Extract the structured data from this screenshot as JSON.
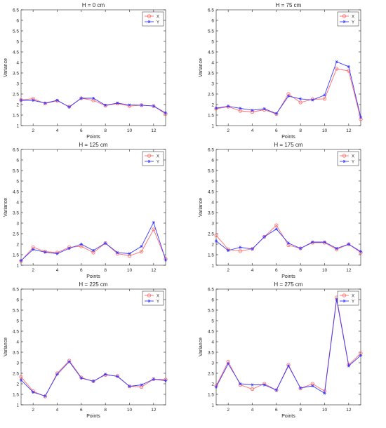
{
  "colors": {
    "x_series": "#ff6b6b",
    "y_series": "#3a3aff",
    "axis": "#262626",
    "background": "#ffffff"
  },
  "chart_data": [
    {
      "type": "line",
      "title": "H = 0 cm",
      "xlabel": "Points",
      "ylabel": "Variance",
      "x": [
        1,
        2,
        3,
        4,
        5,
        6,
        7,
        8,
        9,
        10,
        11,
        12,
        13
      ],
      "xlim": [
        1,
        13
      ],
      "ylim": [
        1,
        6.5
      ],
      "xticks": [
        2,
        4,
        6,
        8,
        10,
        12
      ],
      "yticks": [
        1,
        1.5,
        2,
        2.5,
        3,
        3.5,
        4,
        4.5,
        5,
        5.5,
        6,
        6.5
      ],
      "legend": "top-right",
      "grid": false,
      "series": [
        {
          "name": "X",
          "marker": "circle",
          "values": [
            2.22,
            2.28,
            2.05,
            2.18,
            1.9,
            2.3,
            2.2,
            1.95,
            2.05,
            1.93,
            1.97,
            1.93,
            1.55
          ]
        },
        {
          "name": "Y",
          "marker": "star",
          "values": [
            2.2,
            2.2,
            2.07,
            2.2,
            1.88,
            2.3,
            2.3,
            1.97,
            2.07,
            1.98,
            1.97,
            1.93,
            1.6
          ]
        }
      ]
    },
    {
      "type": "line",
      "title": "H = 75 cm",
      "xlabel": "Points",
      "ylabel": "Variance",
      "x": [
        1,
        2,
        3,
        4,
        5,
        6,
        7,
        8,
        9,
        10,
        11,
        12,
        13
      ],
      "xlim": [
        1,
        13
      ],
      "ylim": [
        1,
        6.5
      ],
      "xticks": [
        2,
        4,
        6,
        8,
        10,
        12
      ],
      "yticks": [
        1,
        1.5,
        2,
        2.5,
        3,
        3.5,
        4,
        4.5,
        5,
        5.5,
        6,
        6.5
      ],
      "legend": "top-right",
      "grid": false,
      "series": [
        {
          "name": "X",
          "marker": "circle",
          "values": [
            1.8,
            1.9,
            1.7,
            1.65,
            1.75,
            1.55,
            2.5,
            2.1,
            2.25,
            2.27,
            3.7,
            3.6,
            1.3
          ]
        },
        {
          "name": "Y",
          "marker": "star",
          "values": [
            1.83,
            1.92,
            1.82,
            1.73,
            1.8,
            1.57,
            2.4,
            2.27,
            2.22,
            2.45,
            4.03,
            3.8,
            1.4
          ]
        }
      ]
    },
    {
      "type": "line",
      "title": "H = 125 cm",
      "xlabel": "Points",
      "ylabel": "Variance",
      "x": [
        1,
        2,
        3,
        4,
        5,
        6,
        7,
        8,
        9,
        10,
        11,
        12,
        13
      ],
      "xlim": [
        1,
        13
      ],
      "ylim": [
        1,
        6.5
      ],
      "xticks": [
        2,
        4,
        6,
        8,
        10,
        12
      ],
      "yticks": [
        1,
        1.5,
        2,
        2.5,
        3,
        3.5,
        4,
        4.5,
        5,
        5.5,
        6,
        6.5
      ],
      "legend": "top-right",
      "grid": false,
      "series": [
        {
          "name": "X",
          "marker": "circle",
          "values": [
            1.2,
            1.85,
            1.65,
            1.6,
            1.85,
            1.9,
            1.6,
            2.05,
            1.55,
            1.45,
            1.65,
            2.7,
            1.3
          ]
        },
        {
          "name": "Y",
          "marker": "star",
          "values": [
            1.22,
            1.75,
            1.62,
            1.55,
            1.8,
            2.0,
            1.7,
            2.05,
            1.6,
            1.55,
            1.9,
            3.03,
            1.25
          ]
        }
      ]
    },
    {
      "type": "line",
      "title": "H = 175 cm",
      "xlabel": "Points",
      "ylabel": "Variance",
      "x": [
        1,
        2,
        3,
        4,
        5,
        6,
        7,
        8,
        9,
        10,
        11,
        12,
        13
      ],
      "xlim": [
        1,
        13
      ],
      "ylim": [
        1,
        6.5
      ],
      "xticks": [
        2,
        4,
        6,
        8,
        10,
        12
      ],
      "yticks": [
        1,
        1.5,
        2,
        2.5,
        3,
        3.5,
        4,
        4.5,
        5,
        5.5,
        6,
        6.5
      ],
      "legend": "top-right",
      "grid": false,
      "series": [
        {
          "name": "X",
          "marker": "circle",
          "values": [
            2.42,
            1.75,
            1.67,
            1.78,
            2.35,
            2.9,
            1.95,
            1.8,
            2.07,
            2.07,
            1.75,
            2.0,
            1.6
          ]
        },
        {
          "name": "Y",
          "marker": "star",
          "values": [
            2.15,
            1.7,
            1.85,
            1.77,
            2.35,
            2.72,
            2.05,
            1.8,
            2.1,
            2.1,
            1.8,
            2.0,
            1.65
          ]
        }
      ]
    },
    {
      "type": "line",
      "title": "H = 225 cm",
      "xlabel": "Points",
      "ylabel": "Variance",
      "x": [
        1,
        2,
        3,
        4,
        5,
        6,
        7,
        8,
        9,
        10,
        11,
        12,
        13
      ],
      "xlim": [
        1,
        13
      ],
      "ylim": [
        1,
        6.5
      ],
      "xticks": [
        2,
        4,
        6,
        8,
        10,
        12
      ],
      "yticks": [
        1,
        1.5,
        2,
        2.5,
        3,
        3.5,
        4,
        4.5,
        5,
        5.5,
        6,
        6.5
      ],
      "legend": "top-right",
      "grid": false,
      "series": [
        {
          "name": "X",
          "marker": "circle",
          "values": [
            2.33,
            1.65,
            1.4,
            2.5,
            3.1,
            2.3,
            2.12,
            2.42,
            2.37,
            1.88,
            1.85,
            2.22,
            2.2
          ]
        },
        {
          "name": "Y",
          "marker": "star",
          "values": [
            2.18,
            1.6,
            1.42,
            2.45,
            3.05,
            2.27,
            2.12,
            2.45,
            2.35,
            1.88,
            1.95,
            2.22,
            2.15
          ]
        }
      ]
    },
    {
      "type": "line",
      "title": "H = 275 cm",
      "xlabel": "Points",
      "ylabel": "Variance",
      "x": [
        1,
        2,
        3,
        4,
        5,
        6,
        7,
        8,
        9,
        10,
        11,
        12,
        13
      ],
      "xlim": [
        1,
        13
      ],
      "ylim": [
        1,
        6.5
      ],
      "xticks": [
        2,
        4,
        6,
        8,
        10,
        12
      ],
      "yticks": [
        1,
        1.5,
        2,
        2.5,
        3,
        3.5,
        4,
        4.5,
        5,
        5.5,
        6,
        6.5
      ],
      "legend": "top-right",
      "grid": false,
      "series": [
        {
          "name": "X",
          "marker": "circle",
          "values": [
            1.9,
            3.05,
            1.95,
            1.75,
            2.0,
            1.7,
            2.9,
            1.78,
            2.0,
            1.65,
            6.1,
            2.9,
            3.45
          ]
        },
        {
          "name": "Y",
          "marker": "star",
          "values": [
            1.85,
            2.95,
            2.0,
            1.95,
            1.95,
            1.7,
            2.85,
            1.8,
            1.9,
            1.55,
            6.0,
            2.85,
            3.35
          ]
        }
      ]
    }
  ]
}
